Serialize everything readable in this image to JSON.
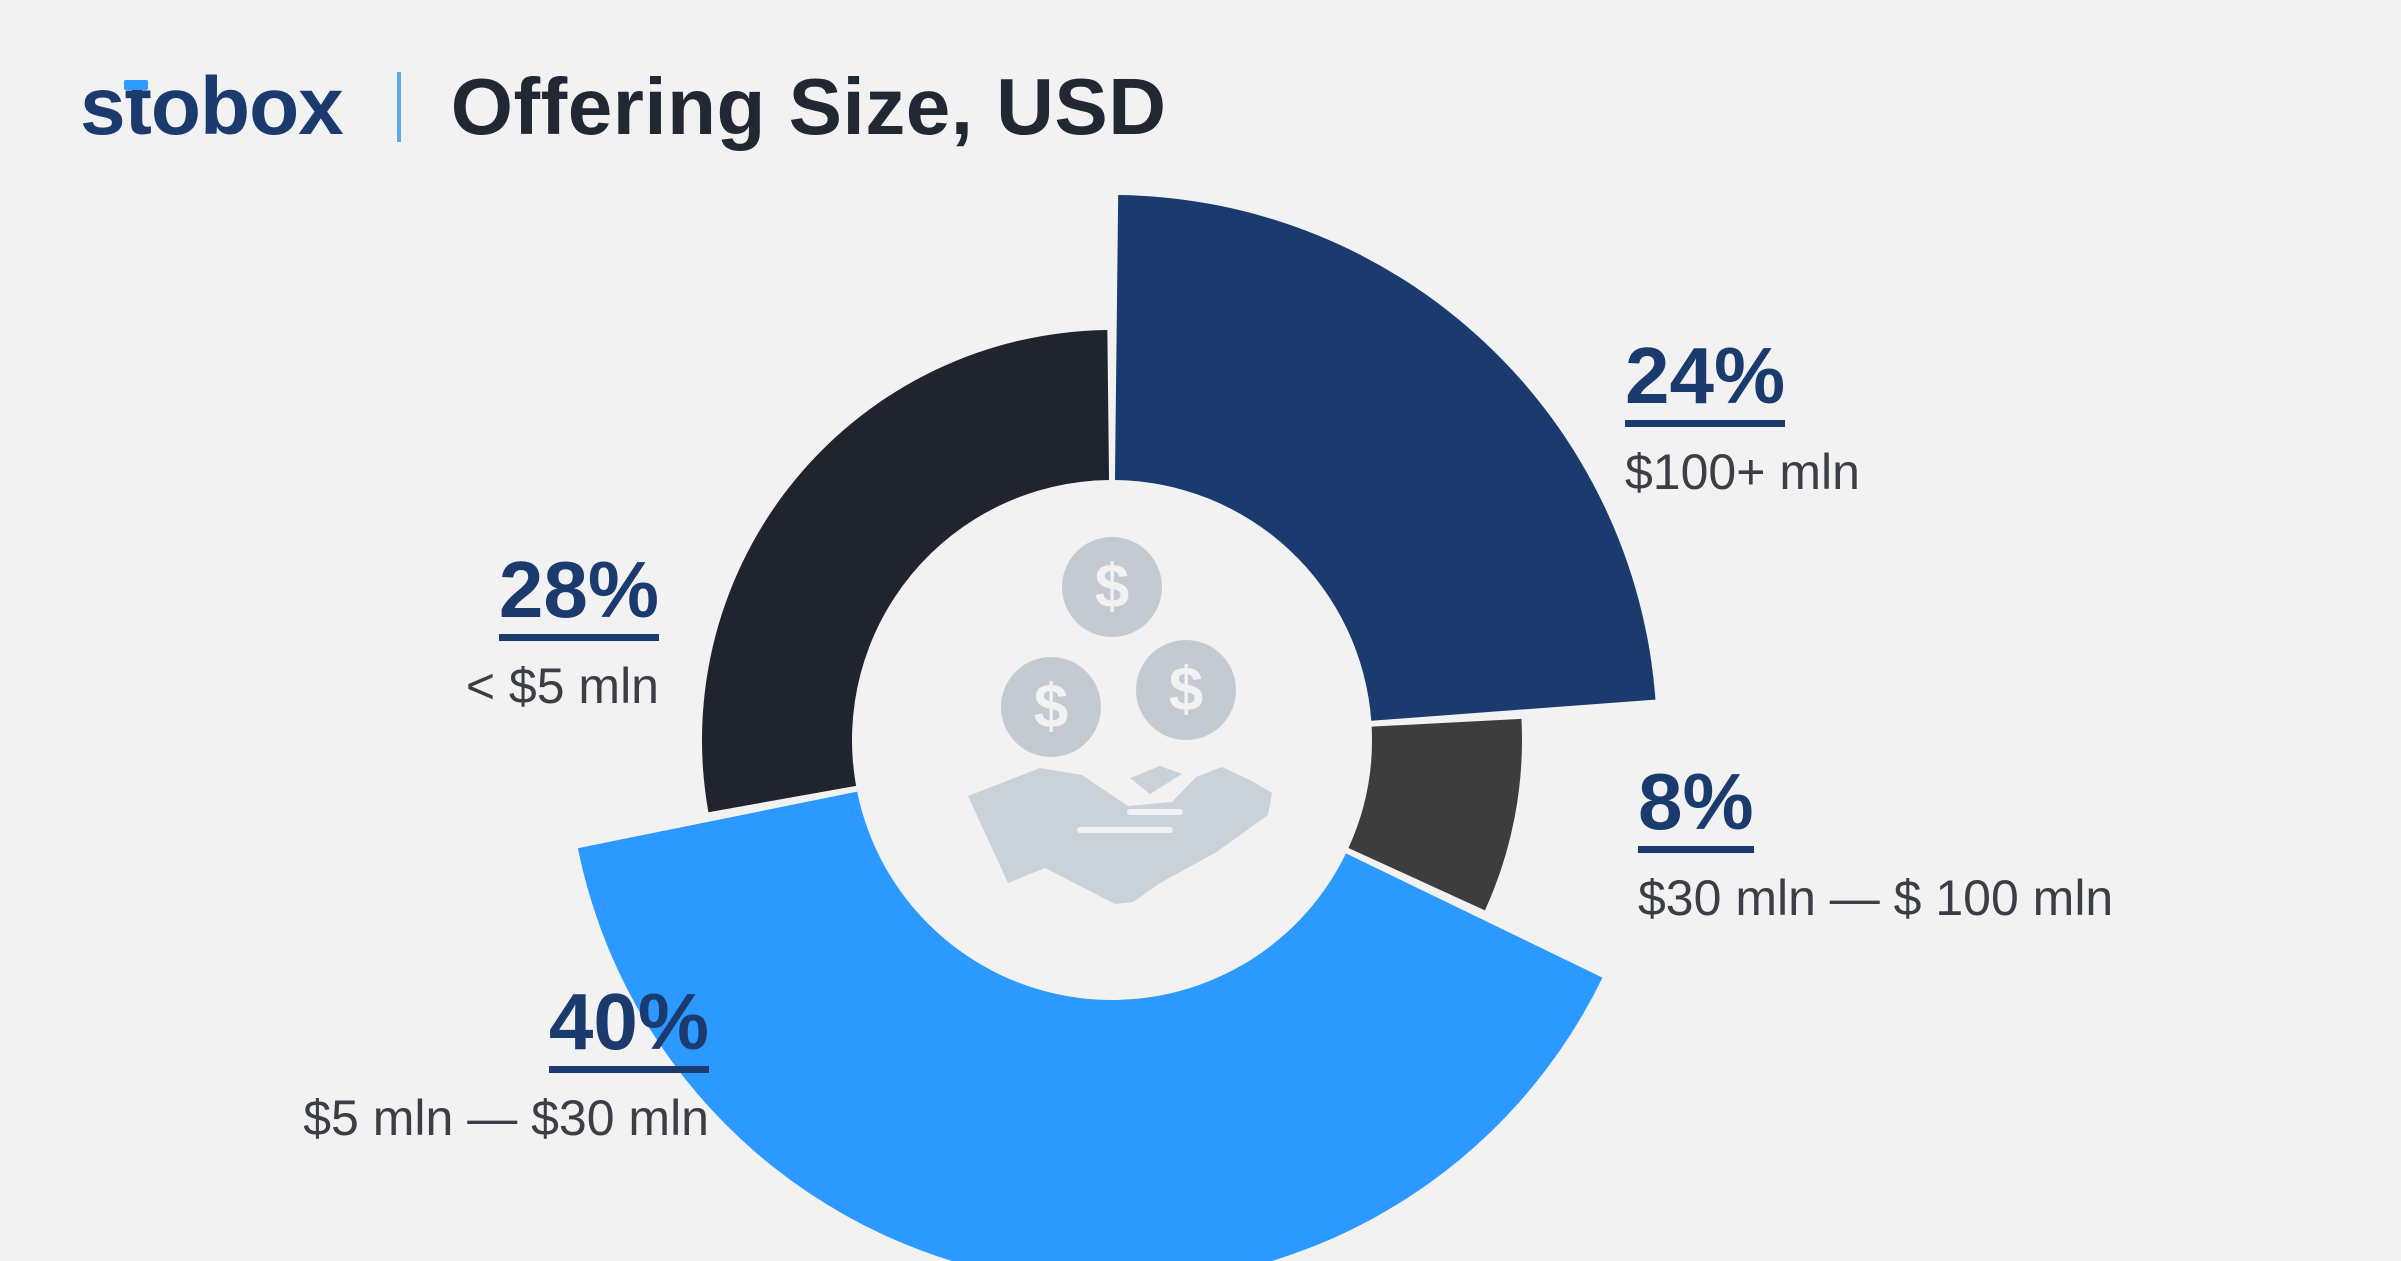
{
  "header": {
    "brand": "stobox",
    "title": "Offering Size, USD"
  },
  "icon": "hand-holding-dollar-coins-icon",
  "chart_data": {
    "type": "pie",
    "title": "Offering Size, USD",
    "style": "donut",
    "slices": [
      {
        "label": "$100+ mln",
        "value": 24,
        "pct_label": "24%",
        "color": "#1b3a6e",
        "exploded": true
      },
      {
        "label": "$30 mln — $ 100 mln",
        "value": 8,
        "pct_label": "8%",
        "color": "#3d3d3d",
        "exploded": false
      },
      {
        "label": "$5 mln — $30 mln",
        "value": 40,
        "pct_label": "40%",
        "color": "#2b99ff",
        "exploded": true
      },
      {
        "label": "< $5 mln",
        "value": 28,
        "pct_label": "28%",
        "color": "#20242e",
        "exploded": false
      }
    ]
  }
}
